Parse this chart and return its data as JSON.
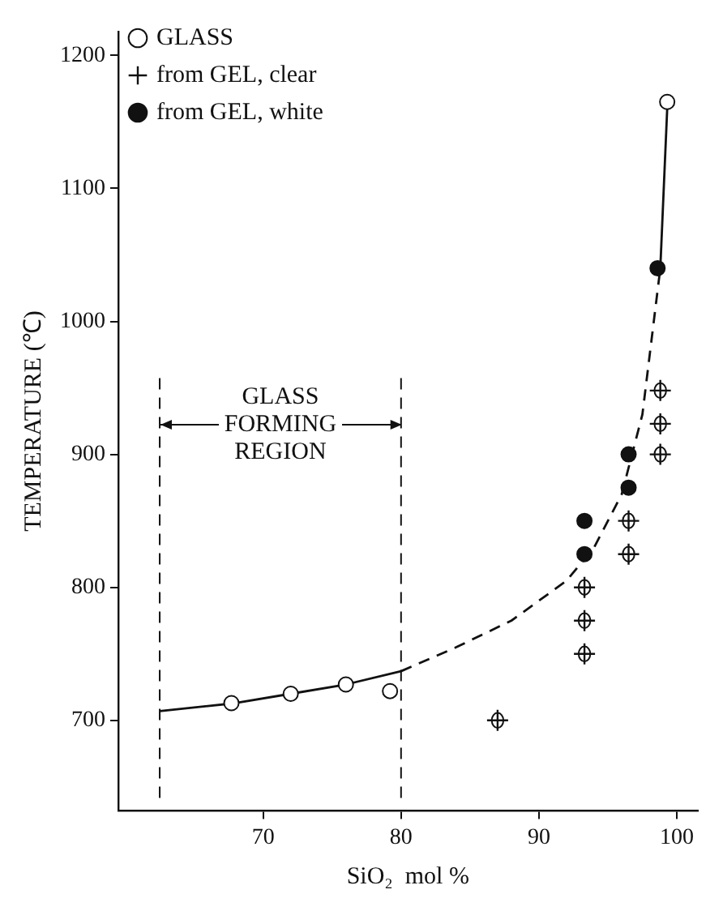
{
  "chart_data": {
    "type": "scatter",
    "xlabel": "SiO₂  mol %",
    "ylabel": "TEMPERATURE (℃)",
    "xlim": [
      59.5,
      101.5
    ],
    "xticks": [
      70,
      80,
      90,
      100
    ],
    "ylim": [
      632,
      1218
    ],
    "yticks": [
      700,
      800,
      900,
      1000,
      1100,
      1200
    ],
    "grid": false,
    "legend": "top left",
    "ref_lines": [
      {
        "axis": "x",
        "value": 62.5,
        "line_style": "dashed",
        "color": "#111111"
      },
      {
        "axis": "x",
        "value": 80,
        "line_style": "dashed",
        "color": "#111111"
      }
    ],
    "annotations": [
      "GLASS\nFORMING\nREGION"
    ],
    "series": [
      {
        "name": "GLASS",
        "marker": "circle",
        "color": "#ffffff",
        "x": [
          67.7,
          72,
          76,
          79.2,
          99.3
        ],
        "values": [
          713,
          720,
          727,
          722,
          1165
        ]
      },
      {
        "name": "from GEL, clear",
        "marker": "cross",
        "color": "#111111",
        "x": [
          87,
          93.3,
          93.3,
          93.3,
          96.5,
          96.5,
          98.8,
          98.8,
          98.8
        ],
        "values": [
          700,
          750,
          775,
          800,
          825,
          850,
          900,
          923,
          948
        ]
      },
      {
        "name": "from GEL, white",
        "marker": "circle",
        "color": "#111111",
        "x": [
          93.3,
          93.3,
          96.5,
          96.5,
          98.6
        ],
        "values": [
          825,
          850,
          875,
          900,
          1040
        ]
      },
      {
        "type": "line",
        "line_style": "solid",
        "marker": "none",
        "color": "#111111",
        "x": [
          62.5,
          68,
          72,
          76,
          80
        ],
        "values": [
          707,
          713,
          720,
          727,
          737
        ]
      },
      {
        "type": "line",
        "line_style": "dashed",
        "marker": "none",
        "color": "#111111",
        "x": [
          80,
          84,
          88,
          92,
          94,
          96,
          97.5,
          98.8
        ],
        "values": [
          737,
          755,
          775,
          805,
          830,
          870,
          930,
          1040
        ]
      },
      {
        "type": "line",
        "line_style": "solid",
        "marker": "none",
        "color": "#111111",
        "x": [
          98.8,
          99.3
        ],
        "values": [
          1040,
          1160
        ]
      }
    ]
  }
}
